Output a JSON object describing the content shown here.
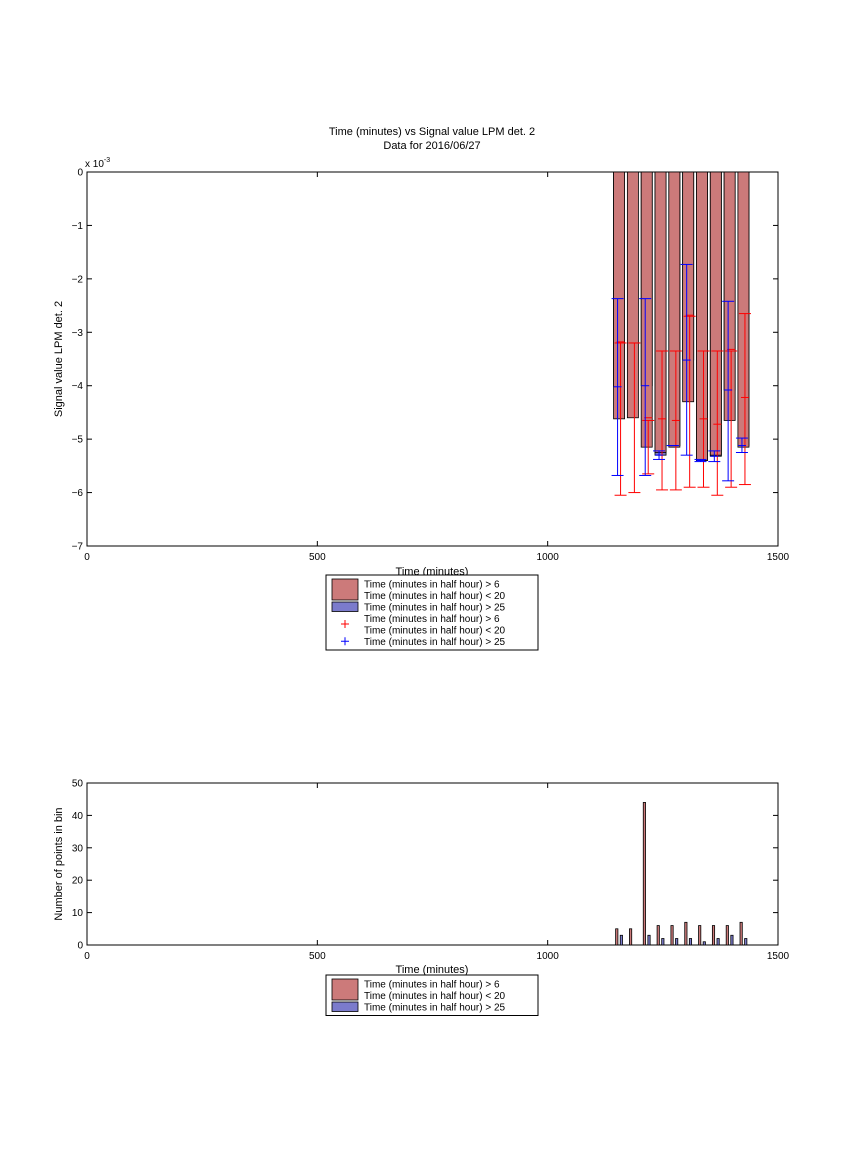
{
  "colors": {
    "red_bar": "#cc7a7a",
    "blue_bar": "#7b7bcc",
    "red_err": "#ff0000",
    "blue_err": "#0000ff"
  },
  "chart_data": [
    {
      "type": "bar",
      "title": "Time (minutes) vs Signal value LPM det. 2",
      "subtitle": "Data for 2016/06/27",
      "xlabel": "Time (minutes)",
      "ylabel": "Signal value LPM det. 2",
      "y_multiplier": "x 10",
      "y_exponent": "-3",
      "xlim": [
        0,
        1500
      ],
      "ylim": [
        -7,
        0
      ],
      "xticks": [
        0,
        500,
        1000,
        1500
      ],
      "yticks": [
        0,
        -1,
        -2,
        -3,
        -4,
        -5,
        -6,
        -7
      ],
      "bar_width": 24,
      "legend_placement": "below",
      "legend": [
        {
          "kind": "bar",
          "color": "red",
          "lines": [
            "Time (minutes in half hour) > 6",
            "Time (minutes in half hour) < 20"
          ]
        },
        {
          "kind": "bar",
          "color": "blue",
          "lines": [
            "Time (minutes in half hour) > 25"
          ]
        },
        {
          "kind": "marker",
          "color": "red",
          "lines": [
            "Time (minutes in half hour) > 6",
            "Time (minutes in half hour) < 20"
          ]
        },
        {
          "kind": "marker",
          "color": "blue",
          "lines": [
            "Time (minutes in half hour) > 25"
          ]
        }
      ],
      "series": [
        {
          "name": "Time (minutes in half hour) > 6 Time (minutes in half hour) < 20",
          "color": "red",
          "x": [
            1155,
            1185,
            1215,
            1245,
            1275,
            1305,
            1335,
            1365,
            1395,
            1425
          ],
          "y": [
            -4.62,
            -4.6,
            -5.15,
            -5.25,
            -5.15,
            -4.3,
            -5.4,
            -5.3,
            -4.65,
            -5.15
          ],
          "err_low": [
            -6.05,
            -6.0,
            -5.65,
            -5.95,
            -5.95,
            -5.9,
            -5.9,
            -6.05,
            -5.9,
            -5.85
          ],
          "err_high": [
            -3.2,
            -3.2,
            -4.65,
            -3.35,
            -3.35,
            -2.7,
            -3.35,
            -3.35,
            -3.35,
            -2.65
          ],
          "mean_marks": [
            -3.18,
            -3.2,
            -4.6,
            -4.62,
            -4.65,
            -2.68,
            -4.62,
            -4.72,
            -3.32,
            -4.22
          ]
        },
        {
          "name": "Time (minutes in half hour) > 25",
          "color": "blue",
          "x": [
            1155,
            1215,
            1245,
            1275,
            1305,
            1335,
            1365,
            1395,
            1425
          ],
          "y": [
            -4.02,
            -4.0,
            -5.3,
            -5.12,
            -3.52,
            -5.4,
            -5.32,
            -4.08,
            -5.12
          ],
          "err_low": [
            -5.68,
            -5.68,
            -5.38,
            -5.12,
            -5.3,
            -5.42,
            -5.42,
            -5.78,
            -5.25
          ],
          "err_high": [
            -2.37,
            -2.37,
            -5.22,
            -5.12,
            -1.73,
            -5.38,
            -5.22,
            -2.42,
            -4.98
          ],
          "mean_marks": [
            -4.02,
            -4.0,
            -5.3,
            -5.12,
            -3.52,
            -5.4,
            -5.32,
            -4.08,
            -5.12
          ]
        }
      ]
    },
    {
      "type": "bar",
      "xlabel": "Time (minutes)",
      "ylabel": "Number of points in bin",
      "xlim": [
        0,
        1500
      ],
      "ylim": [
        0,
        50
      ],
      "xticks": [
        0,
        500,
        1000,
        1500
      ],
      "yticks": [
        0,
        10,
        20,
        30,
        40,
        50
      ],
      "bar_width": 9,
      "legend_placement": "below",
      "legend": [
        {
          "kind": "bar",
          "color": "red",
          "lines": [
            "Time (minutes in half hour) > 6",
            "Time (minutes in half hour) < 20"
          ]
        },
        {
          "kind": "bar",
          "color": "blue",
          "lines": [
            "Time (minutes in half hour) > 25"
          ]
        }
      ],
      "series": [
        {
          "name": "Time (minutes in half hour) > 6 Time (minutes in half hour) < 20",
          "color": "red",
          "x": [
            1150,
            1180,
            1210,
            1240,
            1270,
            1300,
            1330,
            1360,
            1390,
            1420
          ],
          "y": [
            5,
            5,
            44,
            6,
            6,
            7,
            6,
            6,
            6,
            7
          ]
        },
        {
          "name": "Time (minutes in half hour) > 25",
          "color": "blue",
          "x": [
            1160,
            1220,
            1250,
            1280,
            1310,
            1340,
            1370,
            1400,
            1430
          ],
          "y": [
            3,
            3,
            2,
            2,
            2,
            1,
            2,
            3,
            2
          ]
        }
      ]
    }
  ]
}
